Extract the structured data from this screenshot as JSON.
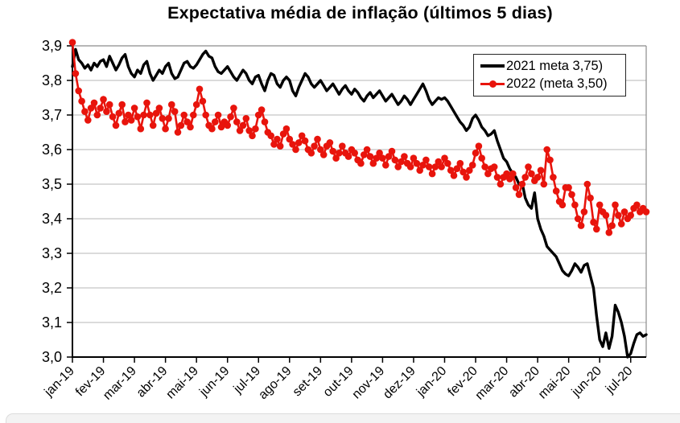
{
  "chart_data": {
    "type": "line",
    "title": "Expectativa média de inflação (últimos 5 dias)",
    "xlabel": "",
    "ylabel": "",
    "grid": true,
    "legend_position": "top-right",
    "ylim": [
      3.0,
      3.9
    ],
    "y_tick_step": 0.1,
    "y_tick_labels": [
      "3,0",
      "3,1",
      "3,2",
      "3,3",
      "3,4",
      "3,5",
      "3,6",
      "3,7",
      "3,8",
      "3,9"
    ],
    "x_tick_labels": [
      "jan-19",
      "fev-19",
      "mar-19",
      "abr-19",
      "mai-19",
      "jun-19",
      "jul-19",
      "ago-19",
      "set-19",
      "out-19",
      "nov-19",
      "dez-19",
      "jan-20",
      "fev-20",
      "mar-20",
      "abr-20",
      "mai-20",
      "jun-20",
      "jul-20"
    ],
    "x_span_months": 18.5,
    "x_step_months": 0.1,
    "series": [
      {
        "name": "2021 meta 3,75)",
        "color": "#000000",
        "marker": "none",
        "line_width": 3.4,
        "values": [
          3.84,
          3.89,
          3.86,
          3.85,
          3.835,
          3.845,
          3.83,
          3.85,
          3.84,
          3.855,
          3.86,
          3.84,
          3.87,
          3.85,
          3.83,
          3.845,
          3.865,
          3.875,
          3.84,
          3.82,
          3.81,
          3.83,
          3.82,
          3.845,
          3.855,
          3.82,
          3.8,
          3.815,
          3.83,
          3.82,
          3.84,
          3.85,
          3.82,
          3.805,
          3.81,
          3.83,
          3.85,
          3.855,
          3.84,
          3.835,
          3.845,
          3.86,
          3.875,
          3.885,
          3.87,
          3.865,
          3.84,
          3.825,
          3.82,
          3.83,
          3.84,
          3.825,
          3.81,
          3.8,
          3.815,
          3.83,
          3.82,
          3.8,
          3.79,
          3.81,
          3.815,
          3.79,
          3.77,
          3.8,
          3.82,
          3.815,
          3.79,
          3.78,
          3.8,
          3.81,
          3.8,
          3.77,
          3.755,
          3.78,
          3.8,
          3.82,
          3.81,
          3.79,
          3.78,
          3.79,
          3.8,
          3.785,
          3.77,
          3.78,
          3.79,
          3.775,
          3.76,
          3.775,
          3.785,
          3.77,
          3.76,
          3.775,
          3.765,
          3.75,
          3.74,
          3.755,
          3.765,
          3.75,
          3.76,
          3.77,
          3.755,
          3.74,
          3.75,
          3.76,
          3.745,
          3.73,
          3.74,
          3.755,
          3.745,
          3.73,
          3.745,
          3.76,
          3.775,
          3.79,
          3.77,
          3.745,
          3.73,
          3.74,
          3.75,
          3.745,
          3.75,
          3.74,
          3.725,
          3.71,
          3.695,
          3.68,
          3.67,
          3.655,
          3.665,
          3.69,
          3.7,
          3.685,
          3.665,
          3.655,
          3.64,
          3.645,
          3.655,
          3.625,
          3.6,
          3.575,
          3.565,
          3.545,
          3.53,
          3.52,
          3.5,
          3.505,
          3.46,
          3.44,
          3.43,
          3.475,
          3.4,
          3.37,
          3.35,
          3.32,
          3.31,
          3.3,
          3.29,
          3.27,
          3.25,
          3.24,
          3.235,
          3.25,
          3.27,
          3.26,
          3.245,
          3.265,
          3.27,
          3.235,
          3.2,
          3.12,
          3.05,
          3.03,
          3.07,
          3.025,
          3.06,
          3.15,
          3.13,
          3.1,
          3.06,
          3.0,
          3.01,
          3.04,
          3.065,
          3.07,
          3.06,
          3.065
        ]
      },
      {
        "name": "2022 (meta 3,50)",
        "color": "#e8140c",
        "marker": "circle",
        "line_width": 2.6,
        "marker_radius": 4.3,
        "values": [
          3.91,
          3.82,
          3.77,
          3.74,
          3.71,
          3.685,
          3.72,
          3.735,
          3.7,
          3.72,
          3.745,
          3.71,
          3.73,
          3.695,
          3.67,
          3.705,
          3.73,
          3.68,
          3.7,
          3.685,
          3.72,
          3.695,
          3.66,
          3.7,
          3.735,
          3.7,
          3.67,
          3.705,
          3.72,
          3.69,
          3.66,
          3.69,
          3.73,
          3.71,
          3.65,
          3.67,
          3.7,
          3.68,
          3.665,
          3.7,
          3.73,
          3.775,
          3.74,
          3.7,
          3.67,
          3.66,
          3.68,
          3.7,
          3.665,
          3.68,
          3.67,
          3.695,
          3.72,
          3.68,
          3.655,
          3.67,
          3.69,
          3.655,
          3.64,
          3.66,
          3.7,
          3.715,
          3.68,
          3.65,
          3.64,
          3.615,
          3.63,
          3.61,
          3.645,
          3.66,
          3.63,
          3.615,
          3.6,
          3.62,
          3.64,
          3.625,
          3.6,
          3.59,
          3.61,
          3.63,
          3.6,
          3.585,
          3.61,
          3.62,
          3.595,
          3.575,
          3.59,
          3.61,
          3.59,
          3.58,
          3.6,
          3.59,
          3.57,
          3.56,
          3.585,
          3.6,
          3.58,
          3.56,
          3.575,
          3.59,
          3.575,
          3.555,
          3.58,
          3.595,
          3.57,
          3.55,
          3.565,
          3.58,
          3.56,
          3.55,
          3.575,
          3.56,
          3.54,
          3.555,
          3.57,
          3.55,
          3.53,
          3.55,
          3.565,
          3.55,
          3.575,
          3.56,
          3.54,
          3.525,
          3.545,
          3.56,
          3.535,
          3.52,
          3.54,
          3.555,
          3.59,
          3.61,
          3.575,
          3.55,
          3.53,
          3.545,
          3.55,
          3.52,
          3.5,
          3.52,
          3.53,
          3.515,
          3.53,
          3.49,
          3.47,
          3.5,
          3.52,
          3.55,
          3.53,
          3.51,
          3.52,
          3.54,
          3.5,
          3.6,
          3.57,
          3.52,
          3.48,
          3.45,
          3.44,
          3.49,
          3.49,
          3.47,
          3.44,
          3.4,
          3.38,
          3.42,
          3.5,
          3.46,
          3.39,
          3.37,
          3.44,
          3.42,
          3.41,
          3.36,
          3.38,
          3.44,
          3.41,
          3.385,
          3.42,
          3.4,
          3.41,
          3.43,
          3.44,
          3.42,
          3.43,
          3.42
        ]
      }
    ]
  }
}
